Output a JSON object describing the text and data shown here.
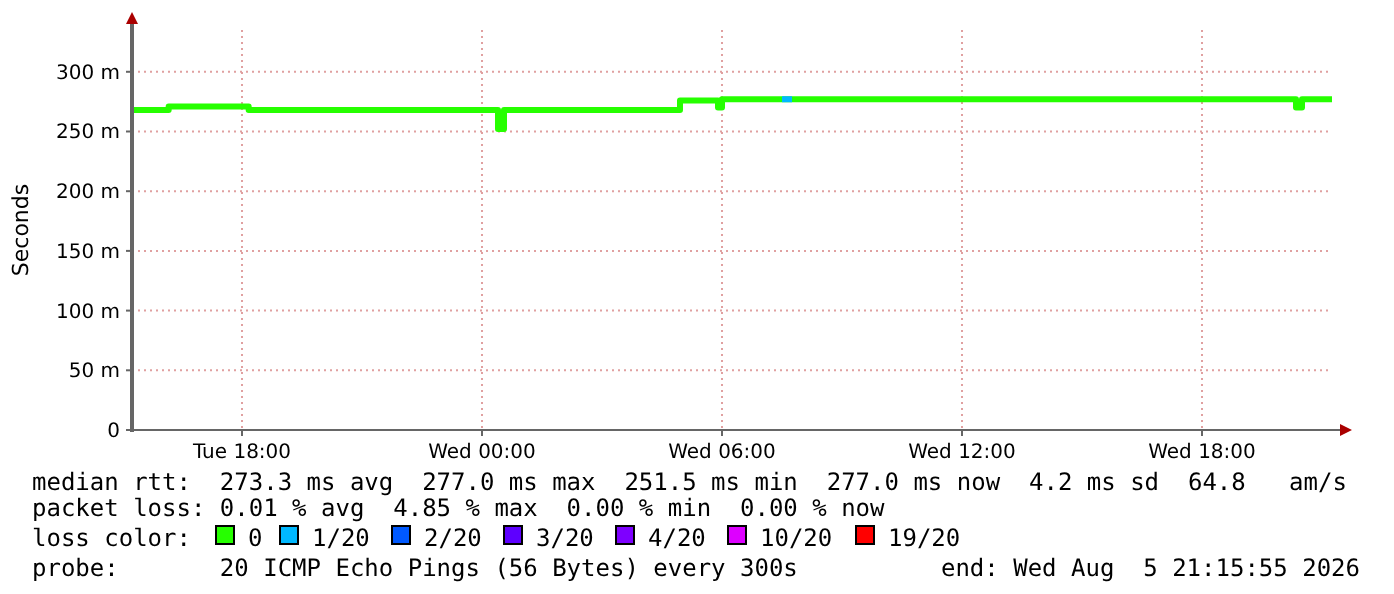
{
  "chart_data": {
    "type": "step",
    "ylabel": "Seconds",
    "legend_title": "loss color:",
    "legend": "bottom",
    "grid": true,
    "line_style": "solid",
    "marker": "none",
    "xlim": [
      "2026-08-04T15:15",
      "2026-08-05T21:15"
    ],
    "xticks": [
      {
        "value": "2026-08-04T18:00",
        "label": "Tue 18:00"
      },
      {
        "value": "2026-08-05T00:00",
        "label": "Wed 00:00"
      },
      {
        "value": "2026-08-05T06:00",
        "label": "Wed 06:00"
      },
      {
        "value": "2026-08-05T12:00",
        "label": "Wed 12:00"
      },
      {
        "value": "2026-08-05T18:00",
        "label": "Wed 18:00"
      }
    ],
    "ylim": [
      0,
      335
    ],
    "yticks": [
      0,
      {
        "value": 50,
        "label": "50 m"
      },
      {
        "value": 100,
        "label": "100 m"
      },
      {
        "value": 150,
        "label": "150 m"
      },
      {
        "value": 200,
        "label": "200 m"
      },
      {
        "value": 250,
        "label": "250 m"
      },
      {
        "value": 300,
        "label": "300 m"
      }
    ],
    "series": [
      {
        "name": "0",
        "color": "#26ff00",
        "x": [
          "2026-08-04T15:15",
          "2026-08-04T16:10",
          "2026-08-04T18:10",
          "2026-08-05T00:24",
          "2026-08-05T00:33",
          "2026-08-05T04:57",
          "2026-08-05T05:54",
          "2026-08-05T06:00",
          "2026-08-05T20:21",
          "2026-08-05T20:30",
          "2026-08-05T21:15"
        ],
        "values": [
          268,
          271,
          268,
          252,
          268,
          276,
          270,
          277,
          270,
          277,
          277
        ]
      },
      {
        "name": "1/20",
        "color": "#00b8ff",
        "x": [
          "2026-08-05T07:30",
          "2026-08-05T07:45"
        ],
        "values": [
          277,
          277
        ]
      },
      {
        "name": "2/20",
        "color": "#0059ff"
      },
      {
        "name": "3/20",
        "color": "#5e00ff"
      },
      {
        "name": "4/20",
        "color": "#7e00ff"
      },
      {
        "name": "10/20",
        "color": "#dd00ff"
      },
      {
        "name": "19/20",
        "color": "#ff0000"
      }
    ],
    "annotations": [
      "median rtt:  273.3 ms avg  277.0 ms max  251.5 ms min  277.0 ms now  4.2 ms sd  64.8   am/s",
      "packet loss: 0.01 % avg  4.85 % max  0.00 % min  0.00 % now",
      "probe:       20 ICMP Echo Pings (56 Bytes) every 300s",
      "end: Wed Aug  5 21:15:55 2026"
    ]
  }
}
